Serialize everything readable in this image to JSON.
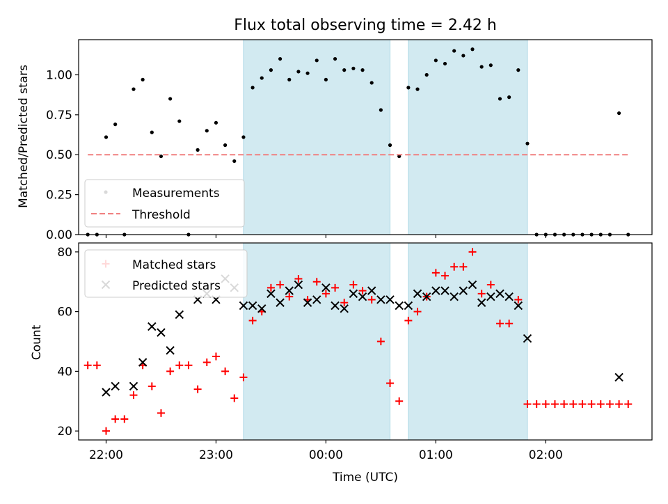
{
  "chart_data": [
    {
      "type": "scatter",
      "title": "Flux total observing time = 2.42 h",
      "xlabel": "",
      "ylabel": "Matched/Predicted stars",
      "xlim": [
        "21:45",
        "02:58"
      ],
      "ylim": [
        0,
        1.22
      ],
      "yticks": [
        "0.00",
        "0.25",
        "0.50",
        "0.75",
        "1.00"
      ],
      "shaded_intervals": [
        [
          "23:15",
          "00:35"
        ],
        [
          "00:45",
          "01:50"
        ]
      ],
      "legend_position": "lower-left",
      "series": [
        {
          "name": "Measurements",
          "marker": "dot",
          "color": "#000000",
          "points": [
            [
              "21:50",
              0.0
            ],
            [
              "21:55",
              0.0
            ],
            [
              "22:00",
              0.61
            ],
            [
              "22:05",
              0.69
            ],
            [
              "22:10",
              0.0
            ],
            [
              "22:15",
              0.91
            ],
            [
              "22:20",
              0.97
            ],
            [
              "22:25",
              0.64
            ],
            [
              "22:30",
              0.49
            ],
            [
              "22:35",
              0.85
            ],
            [
              "22:40",
              0.71
            ],
            [
              "22:45",
              0.0
            ],
            [
              "22:50",
              0.53
            ],
            [
              "22:55",
              0.65
            ],
            [
              "23:00",
              0.7
            ],
            [
              "23:05",
              0.56
            ],
            [
              "23:10",
              0.46
            ],
            [
              "23:15",
              0.61
            ],
            [
              "23:20",
              0.92
            ],
            [
              "23:25",
              0.98
            ],
            [
              "23:30",
              1.03
            ],
            [
              "23:35",
              1.1
            ],
            [
              "23:40",
              0.97
            ],
            [
              "23:45",
              1.02
            ],
            [
              "23:50",
              1.01
            ],
            [
              "23:55",
              1.09
            ],
            [
              "00:00",
              0.97
            ],
            [
              "00:05",
              1.1
            ],
            [
              "00:10",
              1.03
            ],
            [
              "00:15",
              1.04
            ],
            [
              "00:20",
              1.03
            ],
            [
              "00:25",
              0.95
            ],
            [
              "00:30",
              0.78
            ],
            [
              "00:35",
              0.56
            ],
            [
              "00:40",
              0.49
            ],
            [
              "00:45",
              0.92
            ],
            [
              "00:50",
              0.91
            ],
            [
              "00:55",
              1.0
            ],
            [
              "01:00",
              1.09
            ],
            [
              "01:05",
              1.07
            ],
            [
              "01:10",
              1.15
            ],
            [
              "01:15",
              1.12
            ],
            [
              "01:20",
              1.16
            ],
            [
              "01:25",
              1.05
            ],
            [
              "01:30",
              1.06
            ],
            [
              "01:35",
              0.85
            ],
            [
              "01:40",
              0.86
            ],
            [
              "01:45",
              1.03
            ],
            [
              "01:50",
              0.57
            ],
            [
              "01:55",
              0.0
            ],
            [
              "02:00",
              0.0
            ],
            [
              "02:05",
              0.0
            ],
            [
              "02:10",
              0.0
            ],
            [
              "02:15",
              0.0
            ],
            [
              "02:20",
              0.0
            ],
            [
              "02:25",
              0.0
            ],
            [
              "02:30",
              0.0
            ],
            [
              "02:35",
              0.0
            ],
            [
              "02:40",
              0.76
            ],
            [
              "02:45",
              0.0
            ]
          ]
        },
        {
          "name": "Threshold",
          "style": "dashed-line",
          "color": "#f08080",
          "points": [
            [
              "21:50",
              0.5
            ],
            [
              "02:45",
              0.5
            ]
          ]
        }
      ]
    },
    {
      "type": "scatter",
      "title": "",
      "xlabel": "Time (UTC)",
      "ylabel": "Count",
      "xlim": [
        "21:45",
        "02:58"
      ],
      "ylim": [
        17,
        83
      ],
      "yticks": [
        "20",
        "40",
        "60",
        "80"
      ],
      "xticks": [
        "22:00",
        "23:00",
        "00:00",
        "01:00",
        "02:00"
      ],
      "shaded_intervals": [
        [
          "23:15",
          "00:35"
        ],
        [
          "00:45",
          "01:50"
        ]
      ],
      "legend_position": "upper-left",
      "series": [
        {
          "name": "Matched stars",
          "marker": "plus",
          "color": "#ff0000",
          "points": [
            [
              "21:50",
              42
            ],
            [
              "21:55",
              42
            ],
            [
              "22:00",
              20
            ],
            [
              "22:05",
              24
            ],
            [
              "22:10",
              24
            ],
            [
              "22:15",
              32
            ],
            [
              "22:20",
              42
            ],
            [
              "22:25",
              35
            ],
            [
              "22:30",
              26
            ],
            [
              "22:35",
              40
            ],
            [
              "22:40",
              42
            ],
            [
              "22:45",
              42
            ],
            [
              "22:50",
              34
            ],
            [
              "22:55",
              43
            ],
            [
              "23:00",
              45
            ],
            [
              "23:05",
              40
            ],
            [
              "23:10",
              31
            ],
            [
              "23:15",
              38
            ],
            [
              "23:20",
              57
            ],
            [
              "23:25",
              60
            ],
            [
              "23:30",
              68
            ],
            [
              "23:35",
              69
            ],
            [
              "23:40",
              65
            ],
            [
              "23:45",
              71
            ],
            [
              "23:50",
              64
            ],
            [
              "23:55",
              70
            ],
            [
              "00:00",
              66
            ],
            [
              "00:05",
              68
            ],
            [
              "00:10",
              63
            ],
            [
              "00:15",
              69
            ],
            [
              "00:20",
              67
            ],
            [
              "00:25",
              64
            ],
            [
              "00:30",
              50
            ],
            [
              "00:35",
              36
            ],
            [
              "00:40",
              30
            ],
            [
              "00:45",
              57
            ],
            [
              "00:50",
              60
            ],
            [
              "00:55",
              65
            ],
            [
              "01:00",
              73
            ],
            [
              "01:05",
              72
            ],
            [
              "01:10",
              75
            ],
            [
              "01:15",
              75
            ],
            [
              "01:20",
              80
            ],
            [
              "01:25",
              66
            ],
            [
              "01:30",
              69
            ],
            [
              "01:35",
              56
            ],
            [
              "01:40",
              56
            ],
            [
              "01:45",
              64
            ],
            [
              "01:50",
              29
            ],
            [
              "01:55",
              29
            ],
            [
              "02:00",
              29
            ],
            [
              "02:05",
              29
            ],
            [
              "02:10",
              29
            ],
            [
              "02:15",
              29
            ],
            [
              "02:20",
              29
            ],
            [
              "02:25",
              29
            ],
            [
              "02:30",
              29
            ],
            [
              "02:35",
              29
            ],
            [
              "02:40",
              29
            ],
            [
              "02:45",
              29
            ]
          ]
        },
        {
          "name": "Predicted stars",
          "marker": "x",
          "color": "#000000",
          "points": [
            [
              "22:00",
              33
            ],
            [
              "22:05",
              35
            ],
            [
              "22:15",
              35
            ],
            [
              "22:20",
              43
            ],
            [
              "22:25",
              55
            ],
            [
              "22:30",
              53
            ],
            [
              "22:35",
              47
            ],
            [
              "22:40",
              59
            ],
            [
              "22:50",
              64
            ],
            [
              "22:55",
              66
            ],
            [
              "23:00",
              64
            ],
            [
              "23:05",
              71
            ],
            [
              "23:10",
              68
            ],
            [
              "23:15",
              62
            ],
            [
              "23:20",
              62
            ],
            [
              "23:25",
              61
            ],
            [
              "23:30",
              66
            ],
            [
              "23:35",
              63
            ],
            [
              "23:40",
              67
            ],
            [
              "23:45",
              69
            ],
            [
              "23:50",
              63
            ],
            [
              "23:55",
              64
            ],
            [
              "00:00",
              68
            ],
            [
              "00:05",
              62
            ],
            [
              "00:10",
              61
            ],
            [
              "00:15",
              66
            ],
            [
              "00:20",
              65
            ],
            [
              "00:25",
              67
            ],
            [
              "00:30",
              64
            ],
            [
              "00:35",
              64
            ],
            [
              "00:40",
              62
            ],
            [
              "00:45",
              62
            ],
            [
              "00:50",
              66
            ],
            [
              "00:55",
              65
            ],
            [
              "01:00",
              67
            ],
            [
              "01:05",
              67
            ],
            [
              "01:10",
              65
            ],
            [
              "01:15",
              67
            ],
            [
              "01:20",
              69
            ],
            [
              "01:25",
              63
            ],
            [
              "01:30",
              65
            ],
            [
              "01:35",
              66
            ],
            [
              "01:40",
              65
            ],
            [
              "01:45",
              62
            ],
            [
              "01:50",
              51
            ],
            [
              "02:40",
              38
            ]
          ]
        }
      ]
    }
  ],
  "colors": {
    "shade": "#add8e6",
    "matched": "#ff0000",
    "threshold": "#f08080",
    "black": "#000000"
  }
}
